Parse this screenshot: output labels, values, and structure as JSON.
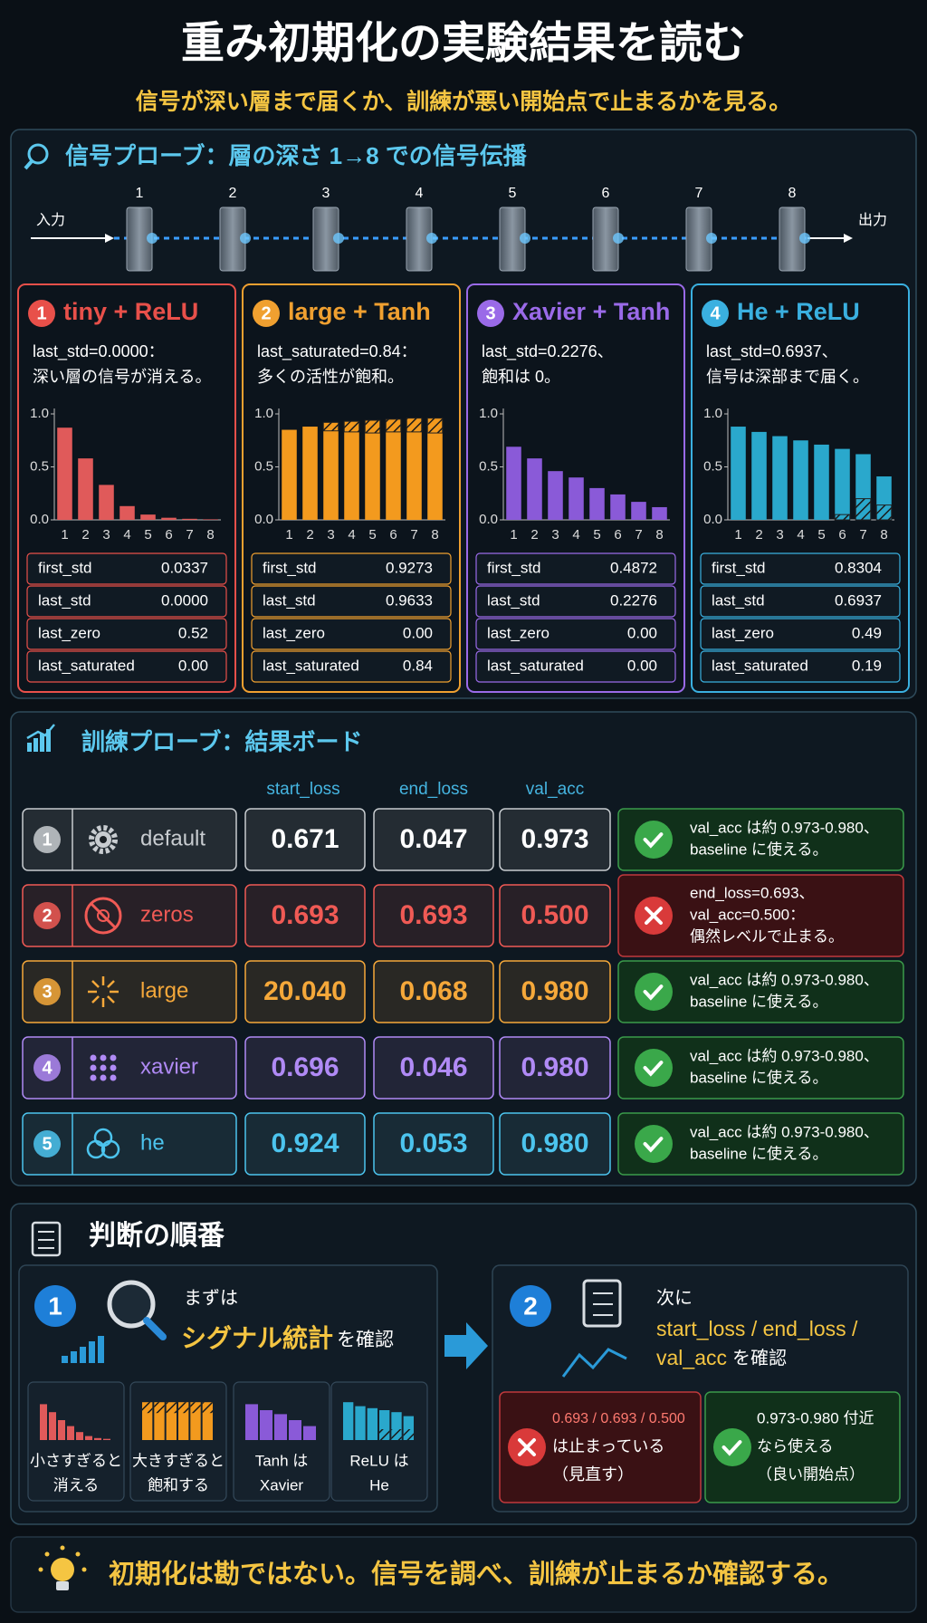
{
  "header": {
    "title": "重み初期化の実験結果を読む",
    "subtitle": "信号が深い層まで届くか、訓練が悪い開始点で止まるかを見る。"
  },
  "signal": {
    "title": "信号プローブ：層の深さ 1→8 での信号伝播",
    "input": "入力",
    "output": "出力",
    "layers": [
      "1",
      "2",
      "3",
      "4",
      "5",
      "6",
      "7",
      "8"
    ],
    "ylim": [
      0,
      1
    ],
    "yticks": [
      {
        "value": 1,
        "label": "1.0"
      },
      0.5,
      {
        "value": 0,
        "label": "0.0"
      }
    ],
    "panels": [
      {
        "num": "1",
        "title": "tiny + ReLU",
        "color": "#e8504a",
        "bar_color": "#e05a5a",
        "note": [
          "last_std=0.0000：",
          "深い層の信号が消える。"
        ],
        "values": [
          0.87,
          0.58,
          0.33,
          0.13,
          0.05,
          0.02,
          0.01,
          0.005
        ],
        "table": [
          [
            "first_std",
            "0.0337"
          ],
          [
            "last_std",
            "0.0000"
          ],
          [
            "last_zero",
            "0.52"
          ],
          [
            "last_saturated",
            "0.00"
          ]
        ]
      },
      {
        "num": "2",
        "title": "large + Tanh",
        "color": "#f0a030",
        "bar_color": "#f39a1e",
        "note": [
          "last_saturated=0.84：",
          "多くの活性が飽和。"
        ],
        "values": [
          0.85,
          0.88,
          0.92,
          0.93,
          0.94,
          0.95,
          0.96,
          0.96
        ],
        "hatch": [
          0,
          0,
          0.08,
          0.1,
          0.12,
          0.12,
          0.13,
          0.14
        ],
        "hatch_at": "top",
        "table": [
          [
            "first_std",
            "0.9273"
          ],
          [
            "last_std",
            "0.9633"
          ],
          [
            "last_zero",
            "0.00"
          ],
          [
            "last_saturated",
            "0.84"
          ]
        ]
      },
      {
        "num": "3",
        "title": "Xavier + Tanh",
        "color": "#9a6ae8",
        "bar_color": "#8a5ad8",
        "note": [
          "last_std=0.2276、",
          "飽和は 0。"
        ],
        "values": [
          0.69,
          0.58,
          0.46,
          0.4,
          0.3,
          0.24,
          0.17,
          0.12
        ],
        "table": [
          [
            "first_std",
            "0.4872"
          ],
          [
            "last_std",
            "0.2276"
          ],
          [
            "last_zero",
            "0.00"
          ],
          [
            "last_saturated",
            "0.00"
          ]
        ]
      },
      {
        "num": "4",
        "title": "He + ReLU",
        "color": "#3ab0e0",
        "bar_color": "#2aa8cc",
        "note": [
          "last_std=0.6937、",
          "信号は深部まで届く。"
        ],
        "values": [
          0.88,
          0.83,
          0.79,
          0.75,
          0.71,
          0.67,
          0.62,
          0.41
        ],
        "hatch": [
          0,
          0,
          0,
          0,
          0,
          0.05,
          0.2,
          0.14
        ],
        "hatch_at": "bottom",
        "table": [
          [
            "first_std",
            "0.8304"
          ],
          [
            "last_std",
            "0.6937"
          ],
          [
            "last_zero",
            "0.49"
          ],
          [
            "last_saturated",
            "0.19"
          ]
        ]
      }
    ]
  },
  "training": {
    "title": "訓練プローブ：結果ボード",
    "columns": [
      "start_loss",
      "end_loss",
      "val_acc"
    ],
    "rows": [
      {
        "num": "1",
        "name": "default",
        "color": "#c8ccd0",
        "values": [
          "0.671",
          "0.047",
          "0.973"
        ],
        "ok": true,
        "verdict": [
          "val_acc は約 0.973-0.980、",
          "baseline に使える。"
        ]
      },
      {
        "num": "2",
        "name": "zeros",
        "color": "#f05a55",
        "values": [
          "0.693",
          "0.693",
          "0.500"
        ],
        "ok": false,
        "verdict": [
          "end_loss=0.693、",
          "val_acc=0.500：",
          "偶然レベルで止まる。"
        ]
      },
      {
        "num": "3",
        "name": "large",
        "color": "#f5a83a",
        "values": [
          "20.040",
          "0.068",
          "0.980"
        ],
        "ok": true,
        "verdict": [
          "val_acc は約 0.973-0.980、",
          "baseline に使える。"
        ]
      },
      {
        "num": "4",
        "name": "xavier",
        "color": "#b08af5",
        "values": [
          "0.696",
          "0.046",
          "0.980"
        ],
        "ok": true,
        "verdict": [
          "val_acc は約 0.973-0.980、",
          "baseline に使える。"
        ]
      },
      {
        "num": "5",
        "name": "he",
        "color": "#4cc4ee",
        "values": [
          "0.924",
          "0.053",
          "0.980"
        ],
        "ok": true,
        "verdict": [
          "val_acc は約 0.973-0.980、",
          "baseline に使える。"
        ]
      }
    ]
  },
  "order": {
    "title": "判断の順番",
    "step1": {
      "num": "1",
      "lead": "まずは",
      "highlight": "シグナル統計",
      "suffix": "を確認",
      "tiles": [
        [
          "小さすぎると",
          "消える"
        ],
        [
          "大きすぎると",
          "飽和する"
        ],
        [
          "Tanh は",
          "Xavier"
        ],
        [
          "ReLU は",
          "He"
        ]
      ]
    },
    "step2": {
      "num": "2",
      "lead": "次に",
      "metrics": [
        "start_loss / end_loss /",
        "val_acc"
      ],
      "suffix": "を確認",
      "bad": [
        "0.693 / 0.693 / 0.500",
        "は止まっている",
        "（見直す）"
      ],
      "good": [
        "0.973-0.980 付近",
        "なら使える",
        "（良い開始点）"
      ]
    }
  },
  "footer": {
    "text": "初期化は勘ではない。信号を調べ、訓練が止まるか確認する。"
  }
}
